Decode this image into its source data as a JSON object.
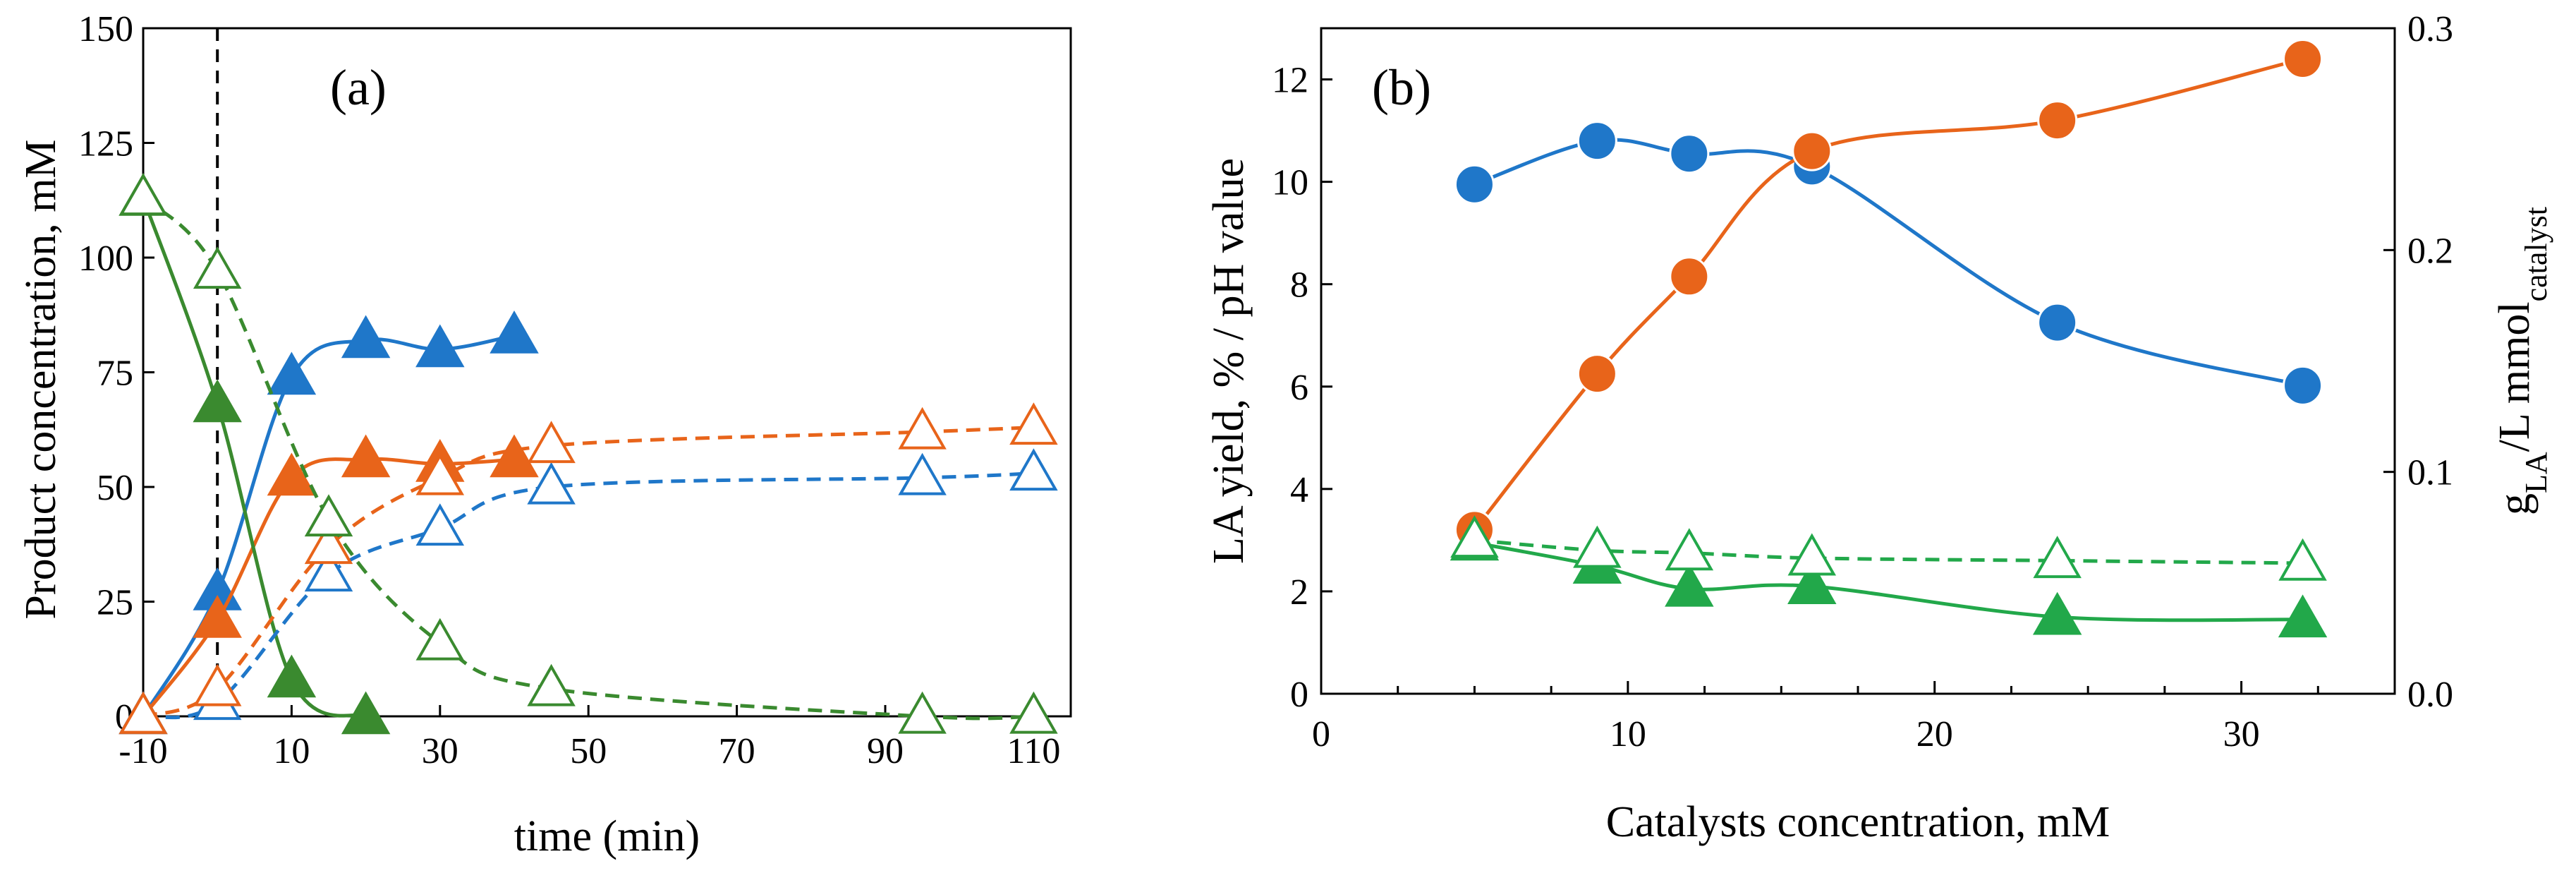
{
  "colors": {
    "blue": "#1f77c9",
    "orange": "#e8641a",
    "green_a": "#3a8a2f",
    "green_b": "#22a84a",
    "axis": "#000000"
  },
  "chart_data": [
    {
      "type": "line",
      "panel_label": "(a)",
      "title": "",
      "xlabel": "time (min)",
      "ylabel": "Product concentration, mM",
      "xlim": [
        -10,
        115
      ],
      "ylim": [
        0,
        150
      ],
      "xticks": [
        -10,
        10,
        30,
        50,
        70,
        90,
        110
      ],
      "yticks": [
        0,
        25,
        50,
        75,
        100,
        125,
        150
      ],
      "xtick_labels": [
        "-10",
        "10",
        "30",
        "50",
        "70",
        "90",
        "110"
      ],
      "ytick_labels": [
        "0",
        "25",
        "50",
        "75",
        "100",
        "125",
        "150"
      ],
      "vline_x": 0,
      "series": [
        {
          "name": "blue solid",
          "color": "blue",
          "marker": "triangle-filled",
          "dash": false,
          "x": [
            -10,
            0,
            10,
            20,
            30,
            40
          ],
          "y": [
            0,
            27,
            74,
            82,
            80,
            83
          ]
        },
        {
          "name": "orange solid",
          "color": "orange",
          "marker": "triangle-filled",
          "dash": false,
          "x": [
            -10,
            0,
            10,
            20,
            30,
            40
          ],
          "y": [
            0,
            21,
            52,
            56,
            55,
            56
          ]
        },
        {
          "name": "green solid",
          "color": "green_a",
          "marker": "triangle-filled",
          "dash": false,
          "x": [
            -10,
            0,
            10,
            20
          ],
          "y": [
            113,
            68,
            8,
            0
          ]
        },
        {
          "name": "blue dashed",
          "color": "blue",
          "marker": "triangle-open",
          "dash": true,
          "x": [
            -10,
            0,
            15,
            30,
            45,
            95,
            110
          ],
          "y": [
            0,
            3,
            31,
            41,
            50,
            52,
            53
          ]
        },
        {
          "name": "orange dashed",
          "color": "orange",
          "marker": "triangle-open",
          "dash": true,
          "x": [
            -10,
            0,
            15,
            30,
            45,
            95,
            110
          ],
          "y": [
            0,
            6,
            37,
            52,
            59,
            62,
            63
          ]
        },
        {
          "name": "green dashed",
          "color": "green_a",
          "marker": "triangle-open",
          "dash": true,
          "x": [
            -10,
            0,
            15,
            30,
            45,
            95,
            110
          ],
          "y": [
            113,
            97,
            43,
            16,
            6,
            0,
            0
          ]
        }
      ]
    },
    {
      "type": "line",
      "panel_label": "(b)",
      "title": "",
      "xlabel": "Catalysts concentration, mM",
      "ylabel": "LA yield, % / pH value",
      "y2label": {
        "main": "g",
        "sub1": "LA",
        "mid": "/L mmol",
        "sub2": "catalyst"
      },
      "xlim": [
        0,
        35
      ],
      "ylim": [
        0,
        13
      ],
      "y2lim": [
        0,
        0.3
      ],
      "xticks": [
        0,
        10,
        20,
        30
      ],
      "yticks": [
        0,
        2,
        4,
        6,
        8,
        10,
        12
      ],
      "y2ticks": [
        0,
        0.1,
        0.2,
        0.3
      ],
      "xtick_labels": [
        "0",
        "10",
        "20",
        "30"
      ],
      "ytick_labels": [
        "0",
        "2",
        "4",
        "6",
        "8",
        "10",
        "12"
      ],
      "y2tick_labels": [
        "0.0",
        "0.1",
        "0.2",
        "0.3"
      ],
      "series": [
        {
          "name": "blue circles",
          "color": "blue",
          "marker": "circle",
          "dash": false,
          "axis": "left",
          "x": [
            5,
            9,
            12,
            16,
            24,
            32
          ],
          "y": [
            9.95,
            10.8,
            10.55,
            10.3,
            7.25,
            6.02
          ]
        },
        {
          "name": "orange circles",
          "color": "orange",
          "marker": "circle",
          "dash": false,
          "axis": "left",
          "x": [
            5,
            9,
            12,
            16,
            24,
            32
          ],
          "y": [
            3.2,
            6.25,
            8.15,
            10.6,
            11.2,
            12.4
          ]
        },
        {
          "name": "green filled triangles",
          "color": "green_b",
          "marker": "triangle-filled",
          "dash": false,
          "axis": "left",
          "x": [
            5,
            9,
            12,
            16,
            24,
            32
          ],
          "y": [
            2.95,
            2.5,
            2.05,
            2.1,
            1.5,
            1.45
          ]
        },
        {
          "name": "green open triangles",
          "color": "green_b",
          "marker": "triangle-open",
          "dash": true,
          "axis": "left",
          "x": [
            5,
            9,
            12,
            16,
            24,
            32
          ],
          "y": [
            3.0,
            2.8,
            2.75,
            2.65,
            2.6,
            2.55
          ]
        }
      ]
    }
  ]
}
